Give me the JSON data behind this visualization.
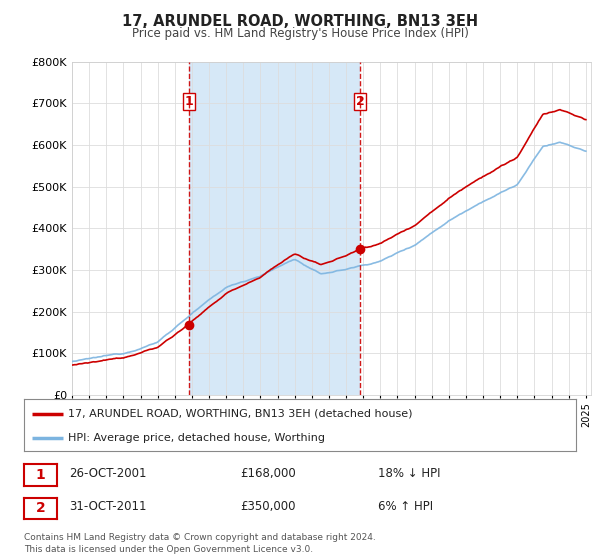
{
  "title": "17, ARUNDEL ROAD, WORTHING, BN13 3EH",
  "subtitle": "Price paid vs. HM Land Registry's House Price Index (HPI)",
  "legend_line1": "17, ARUNDEL ROAD, WORTHING, BN13 3EH (detached house)",
  "legend_line2": "HPI: Average price, detached house, Worthing",
  "sale1_date": "26-OCT-2001",
  "sale1_price": "£168,000",
  "sale1_hpi": "18% ↓ HPI",
  "sale2_date": "31-OCT-2011",
  "sale2_price": "£350,000",
  "sale2_hpi": "6% ↑ HPI",
  "footer": "Contains HM Land Registry data © Crown copyright and database right 2024.\nThis data is licensed under the Open Government Licence v3.0.",
  "hpi_color": "#7cb4e0",
  "price_color": "#cc0000",
  "sale_vline_color": "#cc0000",
  "shade_color": "#d6e8f7",
  "bg_color": "#ffffff",
  "ylim": [
    0,
    800000
  ],
  "yticks": [
    0,
    100000,
    200000,
    300000,
    400000,
    500000,
    600000,
    700000,
    800000
  ],
  "sale1_year": 2001.82,
  "sale2_year": 2011.82,
  "sale1_price_val": 168000,
  "sale2_price_val": 350000
}
